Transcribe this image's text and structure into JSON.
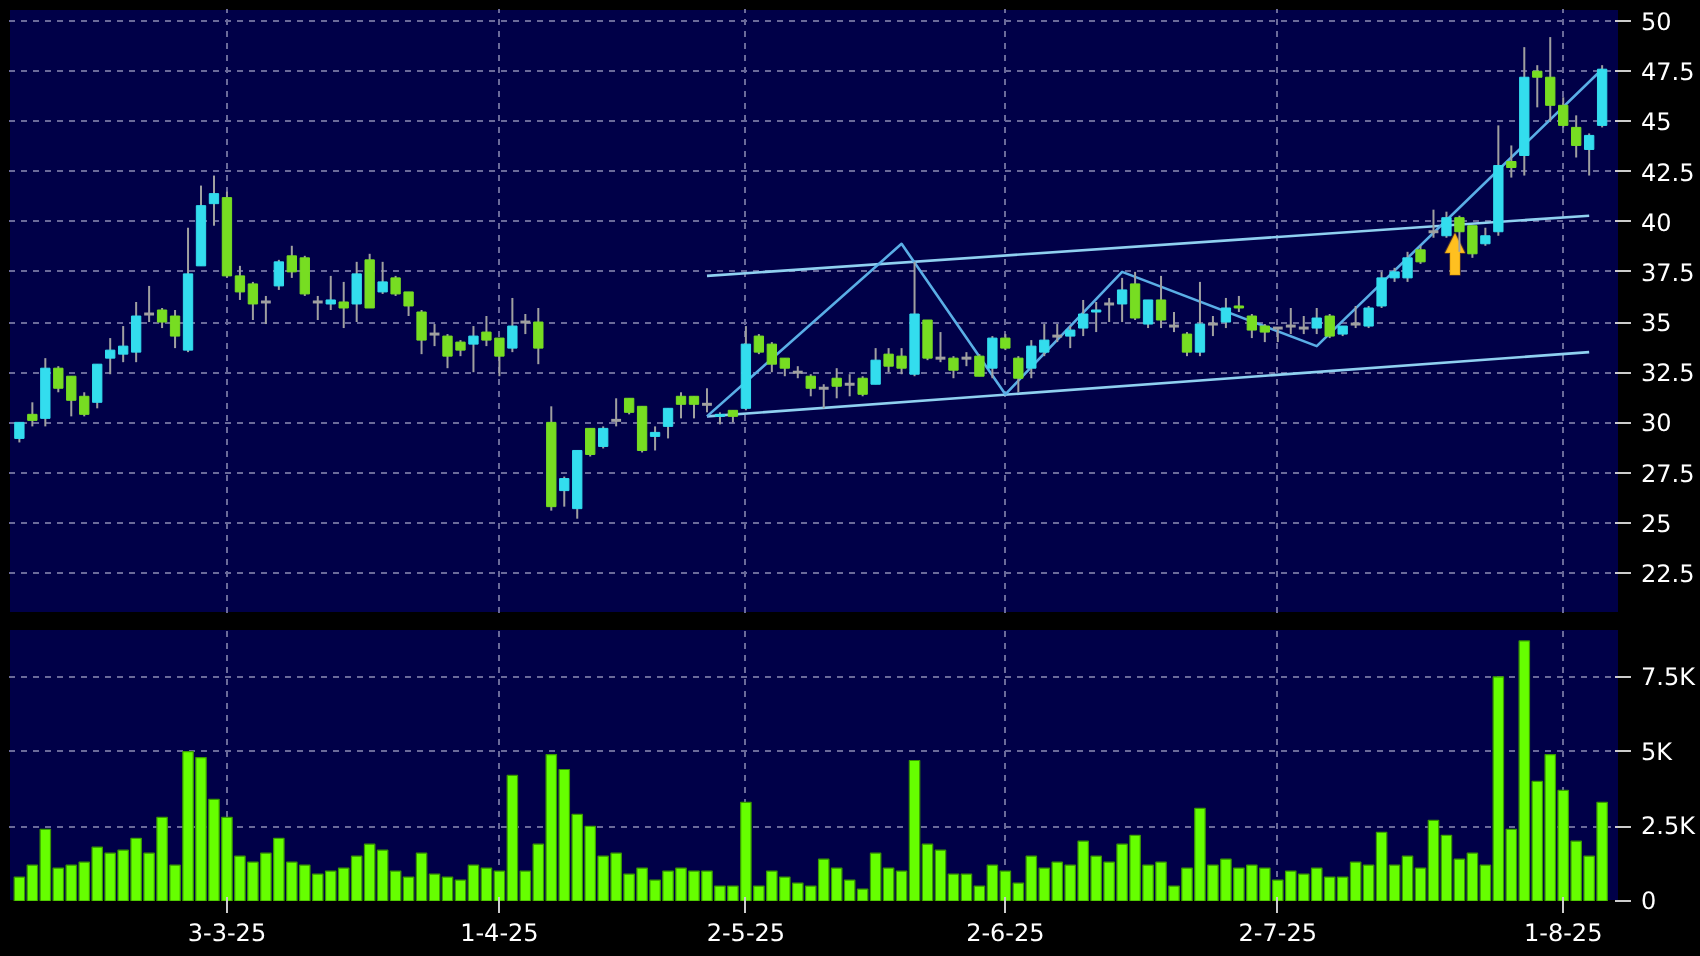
{
  "chart_data": [
    {
      "type": "candlestick",
      "categories": [
        null,
        null,
        null,
        null,
        null,
        null,
        null,
        null,
        null,
        null,
        null,
        null,
        null,
        null,
        null,
        null,
        null,
        null,
        null,
        null,
        null,
        null,
        null,
        null,
        null,
        null,
        null,
        null,
        null,
        null,
        null,
        null,
        null,
        null,
        null,
        null,
        null,
        null,
        null,
        null,
        null,
        null,
        null,
        null,
        null,
        null,
        null,
        null,
        null,
        null,
        null,
        null,
        null,
        null,
        null,
        null,
        null,
        null,
        null,
        null,
        null,
        null,
        null,
        null,
        null,
        null,
        null,
        null,
        null,
        null,
        null,
        null,
        null,
        null,
        null,
        null,
        null,
        null,
        null,
        null,
        null,
        null,
        null,
        null,
        null,
        null,
        null,
        null,
        null,
        null,
        null,
        null,
        null,
        null,
        null,
        null,
        null,
        null,
        null,
        null,
        null,
        null,
        null,
        null,
        null,
        null,
        null,
        null,
        null,
        null,
        null,
        null,
        null,
        null,
        null,
        null,
        null,
        null,
        null,
        null,
        null,
        null,
        null
      ],
      "ohlc": [
        [
          29.2,
          30.0,
          29.0,
          30.0
        ],
        [
          30.4,
          31.0,
          29.8,
          30.1
        ],
        [
          30.2,
          33.2,
          29.8,
          32.7
        ],
        [
          32.7,
          32.8,
          31.5,
          31.7
        ],
        [
          32.3,
          32.3,
          30.3,
          31.1
        ],
        [
          31.3,
          31.5,
          30.3,
          30.4
        ],
        [
          31.0,
          32.9,
          30.7,
          32.9
        ],
        [
          33.2,
          34.2,
          32.4,
          33.6
        ],
        [
          33.4,
          34.8,
          33.0,
          33.8
        ],
        [
          33.5,
          36.0,
          33.0,
          35.3
        ],
        [
          35.4,
          36.8,
          35.0,
          35.4
        ],
        [
          35.6,
          35.7,
          34.7,
          35.0
        ],
        [
          35.3,
          35.6,
          33.7,
          34.3
        ],
        [
          33.6,
          39.7,
          33.5,
          37.4
        ],
        [
          37.8,
          41.8,
          37.8,
          40.8
        ],
        [
          40.9,
          42.3,
          39.8,
          41.4
        ],
        [
          41.2,
          41.5,
          37.2,
          37.3
        ],
        [
          37.3,
          37.8,
          36.1,
          36.5
        ],
        [
          36.9,
          37.0,
          35.1,
          35.9
        ],
        [
          36.0,
          36.3,
          34.9,
          36.0
        ],
        [
          36.8,
          38.1,
          36.6,
          38.0
        ],
        [
          38.3,
          38.8,
          37.2,
          37.5
        ],
        [
          38.2,
          38.3,
          36.3,
          36.4
        ],
        [
          36.0,
          36.3,
          35.1,
          36.0
        ],
        [
          35.9,
          37.3,
          35.6,
          36.1
        ],
        [
          36.0,
          37.0,
          34.7,
          35.7
        ],
        [
          35.9,
          38.0,
          35.0,
          37.4
        ],
        [
          38.1,
          38.4,
          35.7,
          35.7
        ],
        [
          36.5,
          38.0,
          36.4,
          37.0
        ],
        [
          37.2,
          37.3,
          36.3,
          36.4
        ],
        [
          36.5,
          36.5,
          35.3,
          35.8
        ],
        [
          35.5,
          35.6,
          33.4,
          34.1
        ],
        [
          34.4,
          34.9,
          33.8,
          34.4
        ],
        [
          34.3,
          34.4,
          32.7,
          33.3
        ],
        [
          34.0,
          34.1,
          33.3,
          33.6
        ],
        [
          33.9,
          34.8,
          32.5,
          34.3
        ],
        [
          34.5,
          35.3,
          33.8,
          34.1
        ],
        [
          34.2,
          34.2,
          32.3,
          33.3
        ],
        [
          33.7,
          36.2,
          33.5,
          34.8
        ],
        [
          35.0,
          35.4,
          34.4,
          35.0
        ],
        [
          35.0,
          35.7,
          32.9,
          33.7
        ],
        [
          30.0,
          30.8,
          25.6,
          25.8
        ],
        [
          26.6,
          27.3,
          25.8,
          27.2
        ],
        [
          25.7,
          28.6,
          25.2,
          28.6
        ],
        [
          29.7,
          29.7,
          28.3,
          28.4
        ],
        [
          28.8,
          29.8,
          28.7,
          29.7
        ],
        [
          30.1,
          31.2,
          29.8,
          30.1
        ],
        [
          31.2,
          31.2,
          30.4,
          30.5
        ],
        [
          30.8,
          30.8,
          28.5,
          28.6
        ],
        [
          29.3,
          29.8,
          28.6,
          29.5
        ],
        [
          29.8,
          30.7,
          29.2,
          30.7
        ],
        [
          31.3,
          31.5,
          30.2,
          30.9
        ],
        [
          31.3,
          31.3,
          30.2,
          30.9
        ],
        [
          30.9,
          31.7,
          30.5,
          30.9
        ],
        [
          30.3,
          30.5,
          29.9,
          30.4
        ],
        [
          30.6,
          30.6,
          30.0,
          30.3
        ],
        [
          30.7,
          34.8,
          30.6,
          33.9
        ],
        [
          34.3,
          34.4,
          33.4,
          33.5
        ],
        [
          33.9,
          34.0,
          32.5,
          32.9
        ],
        [
          33.2,
          33.2,
          32.3,
          32.7
        ],
        [
          32.5,
          32.8,
          32.2,
          32.5
        ],
        [
          32.3,
          32.4,
          31.3,
          31.7
        ],
        [
          31.7,
          31.9,
          30.7,
          31.7
        ],
        [
          32.2,
          32.7,
          31.2,
          31.8
        ],
        [
          31.9,
          32.4,
          31.3,
          31.9
        ],
        [
          32.2,
          32.3,
          31.3,
          31.4
        ],
        [
          31.9,
          33.7,
          31.9,
          33.1
        ],
        [
          33.4,
          33.7,
          32.5,
          32.8
        ],
        [
          33.3,
          33.7,
          32.4,
          32.7
        ],
        [
          32.4,
          38.0,
          32.3,
          35.4
        ],
        [
          35.1,
          35.1,
          33.1,
          33.2
        ],
        [
          33.2,
          34.5,
          33.0,
          33.2
        ],
        [
          33.2,
          33.3,
          32.2,
          32.6
        ],
        [
          33.2,
          33.5,
          32.8,
          33.2
        ],
        [
          33.3,
          33.4,
          32.3,
          32.3
        ],
        [
          32.7,
          34.3,
          32.2,
          34.2
        ],
        [
          34.2,
          34.4,
          33.6,
          33.7
        ],
        [
          33.2,
          33.3,
          31.5,
          32.2
        ],
        [
          32.7,
          34.1,
          32.2,
          33.8
        ],
        [
          33.5,
          34.9,
          33.3,
          34.1
        ],
        [
          34.3,
          34.9,
          34.0,
          34.3
        ],
        [
          34.3,
          34.8,
          33.7,
          34.6
        ],
        [
          34.7,
          36.1,
          34.3,
          35.4
        ],
        [
          35.5,
          36.0,
          34.5,
          35.6
        ],
        [
          35.9,
          36.2,
          35.0,
          35.9
        ],
        [
          35.9,
          37.2,
          35.0,
          36.6
        ],
        [
          36.9,
          37.5,
          35.1,
          35.2
        ],
        [
          34.9,
          36.1,
          34.7,
          36.1
        ],
        [
          36.1,
          37.3,
          34.7,
          35.1
        ],
        [
          34.8,
          35.5,
          34.5,
          34.8
        ],
        [
          34.4,
          34.5,
          33.3,
          33.5
        ],
        [
          33.5,
          37.0,
          33.3,
          34.9
        ],
        [
          34.9,
          35.3,
          34.3,
          34.9
        ],
        [
          35.0,
          36.2,
          34.7,
          35.7
        ],
        [
          35.8,
          36.3,
          35.5,
          35.7
        ],
        [
          35.3,
          35.4,
          34.2,
          34.6
        ],
        [
          34.8,
          34.9,
          34.0,
          34.5
        ],
        [
          34.7,
          34.7,
          34.0,
          34.7
        ],
        [
          34.8,
          35.7,
          34.4,
          34.8
        ],
        [
          34.7,
          35.3,
          34.4,
          34.7
        ],
        [
          34.7,
          35.7,
          34.4,
          35.2
        ],
        [
          35.3,
          35.4,
          34.2,
          34.3
        ],
        [
          34.4,
          34.8,
          34.3,
          34.8
        ],
        [
          34.9,
          35.8,
          34.7,
          34.9
        ],
        [
          34.8,
          35.8,
          34.7,
          35.7
        ],
        [
          35.8,
          37.5,
          35.7,
          37.2
        ],
        [
          37.2,
          37.7,
          37.0,
          37.5
        ],
        [
          37.2,
          38.5,
          37.0,
          38.2
        ],
        [
          38.6,
          38.8,
          37.9,
          38.0
        ],
        [
          39.5,
          40.6,
          39.2,
          39.5
        ],
        [
          39.3,
          40.5,
          39.2,
          40.2
        ],
        [
          40.2,
          40.3,
          38.5,
          39.5
        ],
        [
          39.8,
          39.8,
          38.2,
          38.4
        ],
        [
          38.9,
          39.7,
          38.8,
          39.3
        ],
        [
          39.5,
          44.8,
          39.3,
          42.8
        ],
        [
          43.0,
          43.8,
          42.2,
          42.7
        ],
        [
          43.3,
          48.7,
          42.3,
          47.2
        ],
        [
          47.5,
          47.8,
          45.7,
          47.2
        ],
        [
          47.2,
          49.2,
          45.0,
          45.8
        ],
        [
          45.8,
          46.2,
          44.7,
          44.8
        ],
        [
          44.7,
          45.3,
          43.2,
          43.8
        ],
        [
          43.6,
          44.4,
          42.3,
          44.3
        ],
        [
          44.8,
          47.8,
          44.7,
          47.6
        ]
      ],
      "colors": [
        "#33ddee",
        "#77dd22",
        "#33ddee",
        "#77dd22",
        "#77dd22",
        "#77dd22",
        "#33ddee",
        "#33ddee",
        "#33ddee",
        "#33ddee",
        "#a0a0a0",
        "#77dd22",
        "#77dd22",
        "#33ddee",
        "#33ddee",
        "#33ddee",
        "#77dd22",
        "#77dd22",
        "#77dd22",
        "#a0a0a0",
        "#33ddee",
        "#77dd22",
        "#77dd22",
        "#a0a0a0",
        "#33ddee",
        "#77dd22",
        "#33ddee",
        "#77dd22",
        "#33ddee",
        "#77dd22",
        "#77dd22",
        "#77dd22",
        "#a0a0a0",
        "#77dd22",
        "#77dd22",
        "#33ddee",
        "#77dd22",
        "#77dd22",
        "#33ddee",
        "#a0a0a0",
        "#77dd22",
        "#77dd22",
        "#33ddee",
        "#33ddee",
        "#77dd22",
        "#33ddee",
        "#a0a0a0",
        "#77dd22",
        "#77dd22",
        "#33ddee",
        "#33ddee",
        "#77dd22",
        "#77dd22",
        "#a0a0a0",
        "#33ddee",
        "#77dd22",
        "#33ddee",
        "#77dd22",
        "#77dd22",
        "#77dd22",
        "#a0a0a0",
        "#77dd22",
        "#a0a0a0",
        "#77dd22",
        "#a0a0a0",
        "#77dd22",
        "#33ddee",
        "#77dd22",
        "#77dd22",
        "#33ddee",
        "#77dd22",
        "#a0a0a0",
        "#77dd22",
        "#a0a0a0",
        "#77dd22",
        "#33ddee",
        "#77dd22",
        "#77dd22",
        "#33ddee",
        "#33ddee",
        "#a0a0a0",
        "#33ddee",
        "#33ddee",
        "#33ddee",
        "#a0a0a0",
        "#33ddee",
        "#77dd22",
        "#33ddee",
        "#77dd22",
        "#a0a0a0",
        "#77dd22",
        "#33ddee",
        "#a0a0a0",
        "#33ddee",
        "#77dd22",
        "#77dd22",
        "#77dd22",
        "#a0a0a0",
        "#a0a0a0",
        "#a0a0a0",
        "#33ddee",
        "#77dd22",
        "#33ddee",
        "#a0a0a0",
        "#33ddee",
        "#33ddee",
        "#33ddee",
        "#33ddee",
        "#77dd22",
        "#a0a0a0",
        "#33ddee",
        "#77dd22",
        "#77dd22",
        "#33ddee",
        "#33ddee",
        "#77dd22",
        "#33ddee",
        "#77dd22",
        "#77dd22",
        "#77dd22",
        "#77dd22",
        "#33ddee",
        "#33ddee"
      ],
      "series": [
        {
          "type": "line",
          "color": "#8fd0f0",
          "values": [
            null,
            null,
            null,
            null,
            null,
            null,
            null,
            null,
            null,
            null,
            null,
            null,
            null,
            null,
            null,
            null,
            null,
            null,
            null,
            null,
            null,
            null,
            null,
            null,
            null,
            null,
            null,
            null,
            null,
            null,
            null,
            null,
            null,
            null,
            null,
            null,
            null,
            null,
            null,
            null,
            null,
            null,
            null,
            null,
            null,
            null,
            null,
            null,
            null,
            null,
            null,
            null,
            null,
            37.3,
            null,
            null,
            null,
            null,
            null,
            null,
            null,
            null,
            null,
            null,
            null,
            null,
            null,
            null,
            null,
            null,
            null,
            null,
            null,
            null,
            null,
            null,
            null,
            null,
            null,
            null,
            null,
            null,
            null,
            null,
            null,
            null,
            null,
            null,
            null,
            null,
            null,
            null,
            null,
            null,
            null,
            null,
            null,
            null,
            null,
            null,
            null,
            null,
            null,
            null,
            null,
            null,
            null,
            null,
            null,
            null,
            null,
            null,
            null,
            null,
            null,
            null,
            null,
            null,
            null,
            null,
            null,
            40.3,
            null
          ]
        },
        {
          "type": "line",
          "color": "#8fd0f0",
          "values": [
            null,
            null,
            null,
            null,
            null,
            null,
            null,
            null,
            null,
            null,
            null,
            null,
            null,
            null,
            null,
            null,
            null,
            null,
            null,
            null,
            null,
            null,
            null,
            null,
            null,
            null,
            null,
            null,
            null,
            null,
            null,
            null,
            null,
            null,
            null,
            null,
            null,
            null,
            null,
            null,
            null,
            null,
            null,
            null,
            null,
            null,
            null,
            null,
            null,
            null,
            null,
            null,
            null,
            30.3,
            null,
            null,
            null,
            null,
            null,
            null,
            null,
            null,
            null,
            null,
            null,
            null,
            null,
            null,
            null,
            null,
            null,
            null,
            null,
            null,
            null,
            null,
            null,
            null,
            null,
            null,
            null,
            null,
            null,
            null,
            null,
            null,
            null,
            null,
            null,
            null,
            null,
            null,
            null,
            null,
            null,
            null,
            null,
            null,
            null,
            null,
            null,
            null,
            null,
            null,
            null,
            null,
            null,
            null,
            null,
            null,
            null,
            null,
            null,
            null,
            null,
            null,
            null,
            null,
            null,
            null,
            null,
            33.5,
            null
          ]
        },
        {
          "type": "line",
          "color": "#5aaee6",
          "values": [
            null,
            null,
            null,
            null,
            null,
            null,
            null,
            null,
            null,
            null,
            null,
            null,
            null,
            null,
            null,
            null,
            null,
            null,
            null,
            null,
            null,
            null,
            null,
            null,
            null,
            null,
            null,
            null,
            null,
            null,
            null,
            null,
            null,
            null,
            null,
            null,
            null,
            null,
            null,
            null,
            null,
            null,
            null,
            null,
            null,
            null,
            null,
            null,
            null,
            null,
            null,
            null,
            null,
            30.3,
            null,
            null,
            null,
            null,
            null,
            null,
            null,
            null,
            null,
            null,
            null,
            null,
            null,
            null,
            38.9,
            null,
            null,
            null,
            null,
            null,
            null,
            null,
            31.4,
            null,
            null,
            null,
            null,
            null,
            null,
            null,
            null,
            37.5,
            null,
            null,
            null,
            null,
            null,
            null,
            null,
            null,
            null,
            null,
            null,
            null,
            null,
            null,
            33.8,
            null,
            null,
            null,
            null,
            null,
            null,
            null,
            null,
            null,
            null,
            null,
            null,
            null,
            null,
            null,
            null,
            null,
            null,
            null,
            null,
            null,
            47.6
          ]
        }
      ],
      "ylim": [
        20.5,
        50.6
      ],
      "yticks": [
        22.5,
        25,
        27.5,
        30,
        32.5,
        35,
        37.5,
        40,
        42.5,
        45,
        47.5,
        50
      ],
      "grid": true,
      "tick_labels": "y"
    },
    {
      "type": "bar",
      "categories": [
        null,
        null,
        null,
        null,
        null,
        null,
        null,
        null,
        null,
        null,
        null,
        null,
        null,
        null,
        null,
        null,
        "3-3-25",
        null,
        null,
        null,
        null,
        null,
        null,
        null,
        null,
        null,
        null,
        null,
        null,
        null,
        null,
        null,
        null,
        null,
        null,
        null,
        null,
        "1-4-25",
        null,
        null,
        null,
        null,
        null,
        null,
        null,
        null,
        null,
        null,
        null,
        null,
        null,
        null,
        null,
        null,
        null,
        null,
        "2-5-25",
        null,
        null,
        null,
        null,
        null,
        null,
        null,
        null,
        null,
        null,
        null,
        null,
        null,
        null,
        null,
        null,
        null,
        null,
        null,
        "2-6-25",
        null,
        null,
        null,
        null,
        null,
        null,
        null,
        null,
        null,
        null,
        null,
        null,
        null,
        null,
        null,
        null,
        null,
        null,
        null,
        null,
        "2-7-25",
        null,
        null,
        null,
        null,
        null,
        null,
        null,
        null,
        null,
        null,
        null,
        null,
        null,
        null,
        null,
        null,
        null,
        null,
        null,
        null,
        null,
        "1-8-25",
        null,
        null,
        null
      ],
      "values": [
        800,
        1200,
        2400,
        1100,
        1200,
        1300,
        1800,
        1600,
        1700,
        2100,
        1600,
        2800,
        1200,
        5000,
        4800,
        3400,
        2800,
        1500,
        1300,
        1600,
        2100,
        1300,
        1200,
        900,
        1000,
        1100,
        1500,
        1900,
        1700,
        1000,
        800,
        1600,
        900,
        800,
        700,
        1200,
        1100,
        1000,
        4200,
        1000,
        1900,
        4900,
        4400,
        2900,
        2500,
        1500,
        1600,
        900,
        1100,
        700,
        1000,
        1100,
        1000,
        1000,
        500,
        500,
        3300,
        500,
        1000,
        800,
        600,
        500,
        1400,
        1100,
        700,
        400,
        1600,
        1100,
        1000,
        4700,
        1900,
        1700,
        900,
        900,
        500,
        1200,
        1000,
        600,
        1500,
        1100,
        1300,
        1200,
        2000,
        1500,
        1300,
        1900,
        2200,
        1200,
        1300,
        500,
        1100,
        3100,
        1200,
        1400,
        1100,
        1200,
        1100,
        700,
        1000,
        900,
        1100,
        800,
        800,
        1300,
        1200,
        2300,
        1200,
        1500,
        1100,
        2700,
        2200,
        1400,
        1600,
        1200,
        7500,
        2400,
        8700,
        4000,
        4900,
        3700,
        2000,
        1500,
        3300
      ],
      "color": "#66ff00",
      "ylim": [
        0,
        9100
      ],
      "yticks": [
        0,
        {
          "value": 2500,
          "label": "2.5K"
        },
        {
          "value": 5000,
          "label": "5K"
        },
        {
          "value": 7500,
          "label": "7.5K"
        }
      ],
      "grid": true
    }
  ]
}
